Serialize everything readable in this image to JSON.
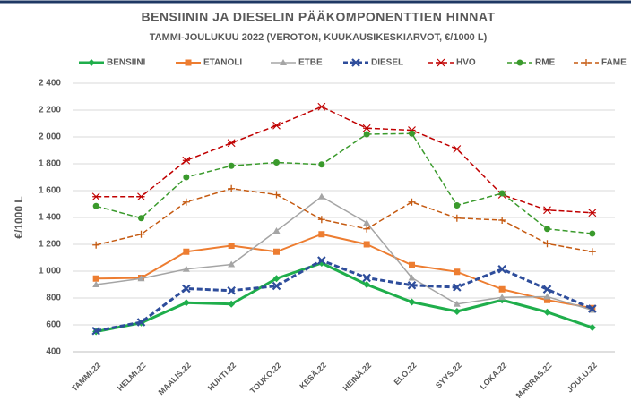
{
  "chart_data": {
    "type": "line",
    "title": "BENSIININ JA DIESELIN PÄÄKOMPONENTTIEN HINNAT",
    "subtitle": "TAMMI-JOULUKUU 2022 (VEROTON, KUUKAUSIKESKIARVOT, €/1000 L)",
    "y_label": "€/1000 L",
    "categories": [
      "TAMMI.22",
      "HELMI.22",
      "MAALIS.22",
      "HUHTI.22",
      "TOUKO.22",
      "KESÄ.22",
      "HEINÄ.22",
      "ELO.22",
      "SYYS.22",
      "LOKA.22",
      "MARRAS.22",
      "JOULU.22"
    ],
    "series": [
      {
        "name": "BENSIINI",
        "color": "#1fae4b",
        "marker": "diamond",
        "dash": false,
        "width": 3,
        "values": [
          550,
          615,
          765,
          755,
          945,
          1060,
          900,
          770,
          700,
          785,
          695,
          580
        ]
      },
      {
        "name": "ETANOLI",
        "color": "#ed7d31",
        "marker": "square",
        "dash": false,
        "width": 2,
        "values": [
          945,
          950,
          1145,
          1190,
          1145,
          1275,
          1200,
          1045,
          995,
          865,
          785,
          725
        ]
      },
      {
        "name": "ETBE",
        "color": "#a5a5a5",
        "marker": "triangle",
        "dash": false,
        "width": 1.5,
        "values": [
          900,
          945,
          1015,
          1050,
          1300,
          1555,
          1360,
          950,
          755,
          805,
          810,
          710
        ]
      },
      {
        "name": "DIESEL",
        "color": "#2e4d9b",
        "marker": "x",
        "dash": true,
        "width": 3,
        "values": [
          555,
          620,
          870,
          855,
          890,
          1080,
          950,
          895,
          880,
          1015,
          865,
          720
        ]
      },
      {
        "name": "HVO",
        "color": "#c00000",
        "marker": "star",
        "dash": true,
        "width": 1.5,
        "values": [
          1555,
          1555,
          1825,
          1955,
          2085,
          2225,
          2065,
          2050,
          1910,
          1570,
          1455,
          1435
        ]
      },
      {
        "name": "RME",
        "color": "#3a9a2c",
        "marker": "circle",
        "dash": true,
        "width": 1.5,
        "values": [
          1485,
          1395,
          1700,
          1785,
          1810,
          1795,
          2020,
          2025,
          1490,
          1580,
          1315,
          1280
        ]
      },
      {
        "name": "FAME",
        "color": "#c55a11",
        "marker": "plus",
        "dash": true,
        "width": 1.5,
        "values": [
          1195,
          1275,
          1515,
          1615,
          1570,
          1385,
          1315,
          1515,
          1395,
          1380,
          1205,
          1145
        ]
      }
    ],
    "ylim": [
      400,
      2400
    ],
    "yticks": [
      400,
      600,
      800,
      {
        "value": 1000,
        "label": "1 000"
      },
      {
        "value": 1200,
        "label": "1 200"
      },
      {
        "value": 1400,
        "label": "1 400"
      },
      {
        "value": 1600,
        "label": "1 600"
      },
      {
        "value": 1800,
        "label": "1 800"
      },
      {
        "value": 2000,
        "label": "2 000"
      },
      {
        "value": 2200,
        "label": "2 200"
      },
      {
        "value": 2400,
        "label": "2 400"
      }
    ],
    "grid": true,
    "legend": "top"
  }
}
